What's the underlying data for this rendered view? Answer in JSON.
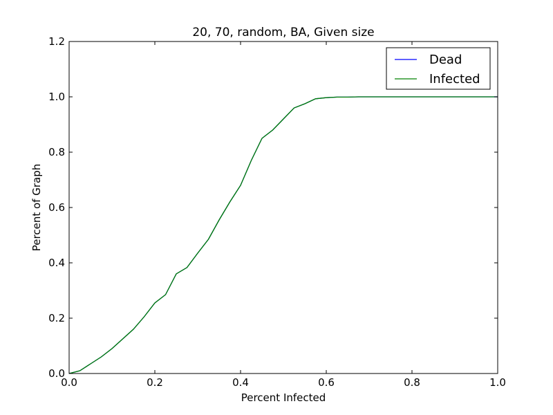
{
  "chart_data": {
    "type": "line",
    "title": "20, 70, random, BA, Given size",
    "xlabel": "Percent Infected",
    "ylabel": "Percent of Graph",
    "xlim": [
      0.0,
      1.0
    ],
    "ylim": [
      0.0,
      1.2
    ],
    "xticks": [
      0.0,
      0.2,
      0.4,
      0.6,
      0.8,
      1.0
    ],
    "xtick_labels": [
      "0.0",
      "0.2",
      "0.4",
      "0.6",
      "0.8",
      "1.0"
    ],
    "yticks": [
      0.0,
      0.2,
      0.4,
      0.6,
      0.8,
      1.0,
      1.2
    ],
    "ytick_labels": [
      "0.0",
      "0.2",
      "0.4",
      "0.6",
      "0.8",
      "1.0",
      "1.2"
    ],
    "grid": false,
    "legend_position": "top-right",
    "x": [
      0.0,
      0.025,
      0.05,
      0.075,
      0.1,
      0.125,
      0.15,
      0.175,
      0.2,
      0.225,
      0.25,
      0.275,
      0.3,
      0.325,
      0.35,
      0.375,
      0.4,
      0.425,
      0.45,
      0.475,
      0.5,
      0.525,
      0.55,
      0.575,
      0.6,
      0.625,
      0.65,
      0.675,
      0.7,
      0.725,
      0.75,
      0.775,
      0.8,
      0.825,
      0.85,
      0.875,
      0.9,
      0.925,
      0.95,
      0.975,
      1.0
    ],
    "series": [
      {
        "name": "Dead",
        "color": "#0000ff",
        "values": [
          0.0,
          0.01,
          0.035,
          0.06,
          0.09,
          0.125,
          0.16,
          0.205,
          0.255,
          0.285,
          0.36,
          0.383,
          0.435,
          0.485,
          0.555,
          0.62,
          0.68,
          0.77,
          0.85,
          0.88,
          0.92,
          0.96,
          0.975,
          0.993,
          0.997,
          0.999,
          0.999,
          1.0,
          1.0,
          1.0,
          1.0,
          1.0,
          1.0,
          1.0,
          1.0,
          1.0,
          1.0,
          1.0,
          1.0,
          1.0,
          1.0
        ]
      },
      {
        "name": "Infected",
        "color": "#008000",
        "values": [
          0.0,
          0.01,
          0.035,
          0.06,
          0.09,
          0.125,
          0.16,
          0.205,
          0.255,
          0.285,
          0.36,
          0.383,
          0.435,
          0.485,
          0.555,
          0.62,
          0.68,
          0.77,
          0.85,
          0.88,
          0.92,
          0.96,
          0.975,
          0.993,
          0.997,
          0.999,
          0.999,
          1.0,
          1.0,
          1.0,
          1.0,
          1.0,
          1.0,
          1.0,
          1.0,
          1.0,
          1.0,
          1.0,
          1.0,
          1.0,
          1.0
        ]
      }
    ]
  }
}
